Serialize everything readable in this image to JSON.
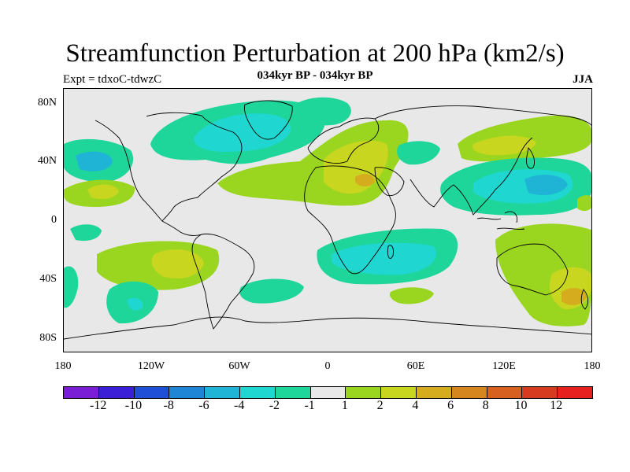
{
  "title": "Streamfunction Perturbation at 200 hPa (km2/s)",
  "subtitle": "034kyr BP - 034kyr BP",
  "expt_label": "Expt = tdxoC-tdwzC",
  "season": "JJA",
  "lat_labels": [
    "80N",
    "40N",
    "0",
    "40S",
    "80S"
  ],
  "lon_labels": [
    "180",
    "120W",
    "60W",
    "0",
    "60E",
    "120E",
    "180"
  ],
  "colorbar": {
    "labels": [
      "-12",
      "-10",
      "-8",
      "-6",
      "-4",
      "-2",
      "-1",
      "1",
      "2",
      "4",
      "6",
      "8",
      "10",
      "12"
    ],
    "colors": [
      "#7a1fd6",
      "#3a1fd6",
      "#1f4fd6",
      "#1f86d6",
      "#1fb4d6",
      "#1fd6d0",
      "#1fd69a",
      "#e8e8e8",
      "#9ad61f",
      "#c8d61f",
      "#d6ac1f",
      "#d6861f",
      "#d6601f",
      "#d63a1f",
      "#e61f1f"
    ]
  },
  "field_colors": {
    "neutral": "#e8e8e8",
    "pos1": "#9ad61f",
    "pos2": "#c8d61f",
    "pos4": "#d6ac1f",
    "neg1": "#1fd69a",
    "neg2": "#1fd6d0",
    "neg4": "#1fb4d6"
  }
}
